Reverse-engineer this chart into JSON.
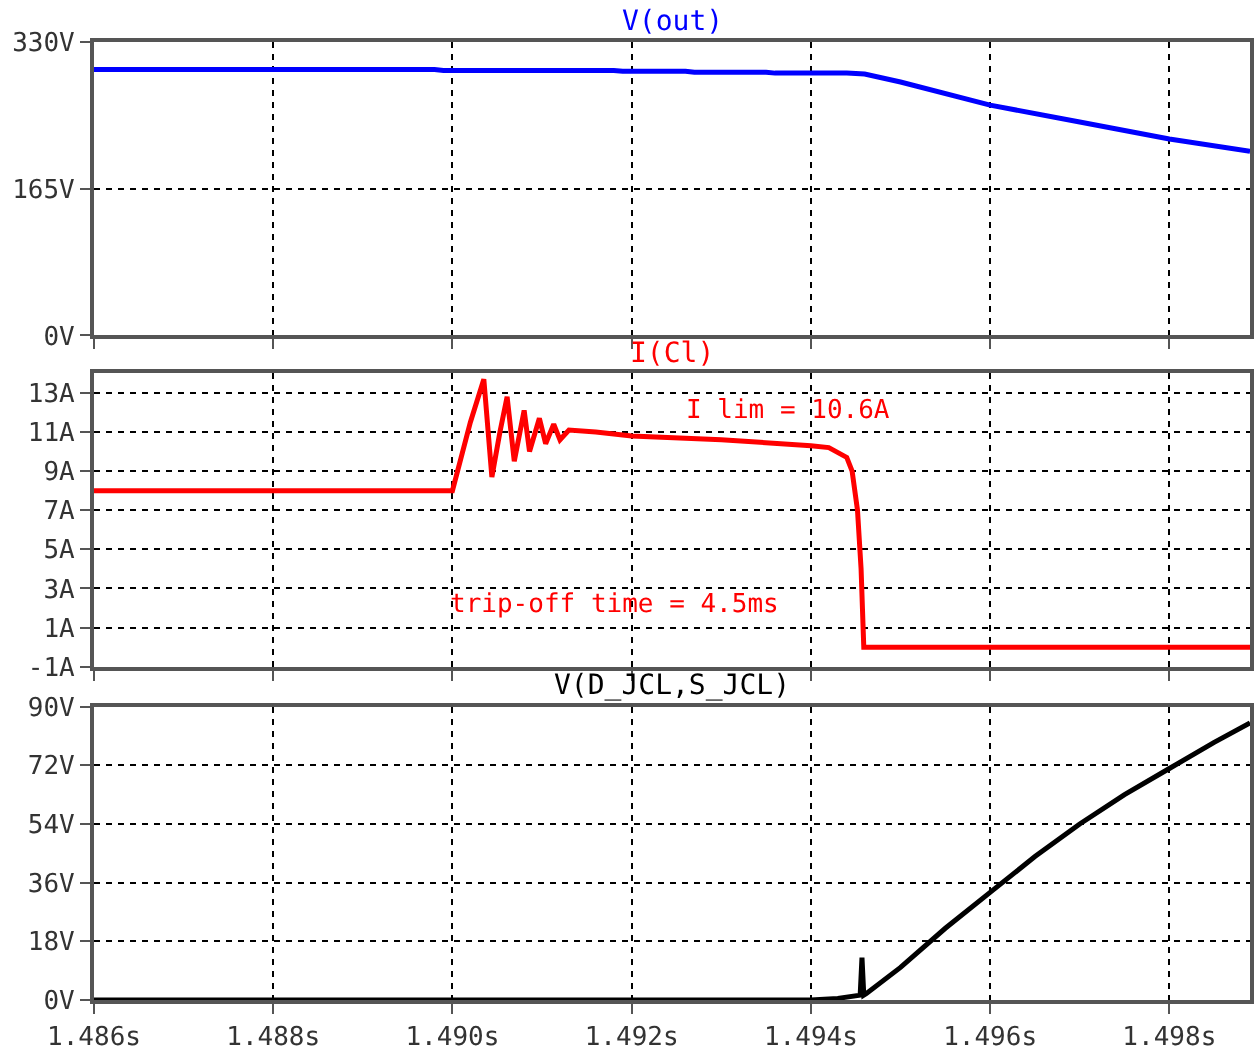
{
  "chart_data": [
    {
      "type": "line",
      "title": "V(out)",
      "xlim": [
        1.486,
        1.4989
      ],
      "ylim": [
        0,
        330
      ],
      "yticks": [
        {
          "value": 0,
          "label": "0V"
        },
        {
          "value": 165,
          "label": "165V"
        },
        {
          "value": 330,
          "label": "330V"
        }
      ],
      "grid": true,
      "tick_labels": "y",
      "line_style": "solid",
      "marker": "none",
      "series": [
        {
          "color": "#0000ff",
          "x": [
            1.486,
            1.4898,
            1.4899,
            1.4918,
            1.4919,
            1.4926,
            1.4927,
            1.4935,
            1.4936,
            1.4944,
            1.4946,
            1.495,
            1.496,
            1.497,
            1.498,
            1.4989
          ],
          "values": [
            299,
            299,
            298,
            298,
            297,
            297,
            296,
            296,
            295,
            295,
            294,
            285,
            259,
            240,
            221,
            207
          ]
        }
      ]
    },
    {
      "type": "line",
      "title": "I(Cl)",
      "xlim": [
        1.486,
        1.4989
      ],
      "ylim": [
        -1,
        14
      ],
      "yticks": [
        {
          "value": -1,
          "label": "-1A"
        },
        {
          "value": 1,
          "label": "1A"
        },
        {
          "value": 3,
          "label": "3A"
        },
        {
          "value": 5,
          "label": "5A"
        },
        {
          "value": 7,
          "label": "7A"
        },
        {
          "value": 9,
          "label": "9A"
        },
        {
          "value": 11,
          "label": "11A"
        },
        {
          "value": 13,
          "label": "13A"
        }
      ],
      "grid": true,
      "tick_labels": "y",
      "line_style": "solid",
      "marker": "none",
      "annotations": [
        "I lim = 10.6A",
        "trip-off time = 4.5ms"
      ],
      "series": [
        {
          "color": "#ff0000",
          "x": [
            1.486,
            1.49,
            1.4902,
            1.49035,
            1.49044,
            1.49053,
            1.49061,
            1.49069,
            1.4908,
            1.49086,
            1.49097,
            1.49104,
            1.49113,
            1.4912,
            1.4913,
            1.4916,
            1.492,
            1.493,
            1.494,
            1.4942,
            1.4944,
            1.49446,
            1.49452,
            1.49456,
            1.49459,
            1.4989
          ],
          "values": [
            8,
            8,
            11.5,
            13.7,
            8.7,
            11,
            12.8,
            9.5,
            12.1,
            10,
            11.7,
            10.4,
            11.4,
            10.6,
            11.1,
            11,
            10.8,
            10.6,
            10.3,
            10.2,
            9.7,
            9,
            7,
            4,
            0,
            0
          ]
        }
      ]
    },
    {
      "type": "line",
      "title": "V(D_JCL,S_JCL)",
      "xlim": [
        1.486,
        1.4989
      ],
      "ylim": [
        0,
        90
      ],
      "xticks": [
        {
          "value": 1.486,
          "label": "1.486s"
        },
        {
          "value": 1.488,
          "label": "1.488s"
        },
        {
          "value": 1.49,
          "label": "1.490s"
        },
        {
          "value": 1.492,
          "label": "1.492s"
        },
        {
          "value": 1.494,
          "label": "1.494s"
        },
        {
          "value": 1.496,
          "label": "1.496s"
        },
        {
          "value": 1.498,
          "label": "1.498s"
        }
      ],
      "yticks": [
        {
          "value": 0,
          "label": "0V"
        },
        {
          "value": 18,
          "label": "18V"
        },
        {
          "value": 36,
          "label": "36V"
        },
        {
          "value": 54,
          "label": "54V"
        },
        {
          "value": 72,
          "label": "72V"
        },
        {
          "value": 90,
          "label": "90V"
        }
      ],
      "grid": true,
      "line_style": "solid",
      "marker": "none",
      "series": [
        {
          "color": "#000000",
          "x": [
            1.486,
            1.494,
            1.4943,
            1.49455,
            1.49457,
            1.49459,
            1.49462,
            1.495,
            1.4955,
            1.496,
            1.4965,
            1.497,
            1.4975,
            1.498,
            1.4985,
            1.4989
          ],
          "values": [
            0,
            0,
            0.5,
            1.5,
            13,
            1.5,
            2,
            10,
            22,
            33,
            44,
            54,
            63,
            71,
            79,
            85
          ]
        }
      ]
    }
  ]
}
